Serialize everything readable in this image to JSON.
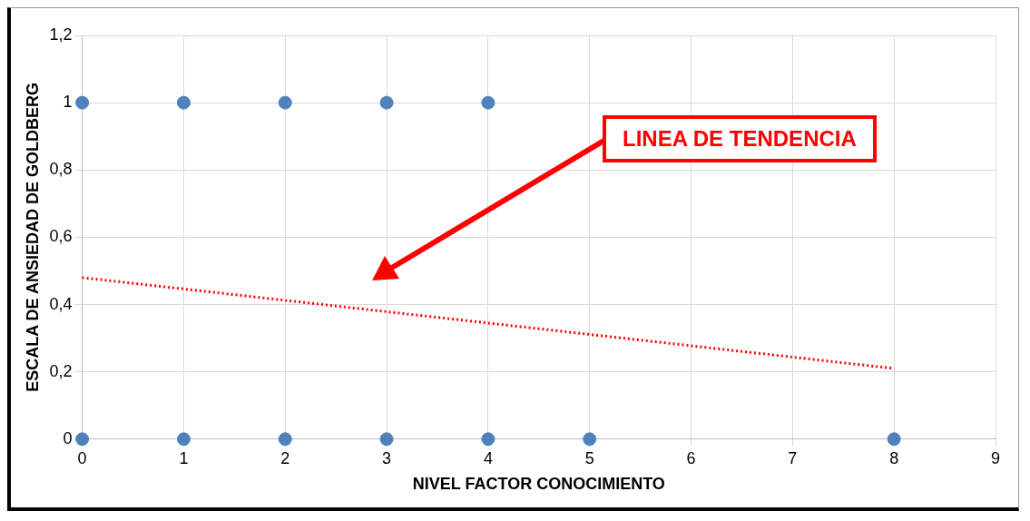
{
  "chart_data": {
    "type": "scatter",
    "xlabel": "NIVEL FACTOR CONOCIMIENTO",
    "ylabel": "ESCALA DE ANSIEDAD DE GOLDBERG",
    "xlim": [
      0,
      9
    ],
    "xticks": [
      0,
      1,
      2,
      3,
      4,
      5,
      6,
      7,
      8,
      9
    ],
    "ylim": [
      0,
      1.2
    ],
    "yticks": [
      {
        "value": 0,
        "label": "0"
      },
      {
        "value": 0.2,
        "label": "0,2"
      },
      {
        "value": 0.4,
        "label": "0,4"
      },
      {
        "value": 0.6,
        "label": "0,6"
      },
      {
        "value": 0.8,
        "label": "0,8"
      },
      {
        "value": 1,
        "label": "1"
      },
      {
        "value": 1.2,
        "label": "1,2"
      }
    ],
    "grid": true,
    "legend": false,
    "marker": "circle",
    "annotations": [
      "LINEA DE TENDENCIA"
    ],
    "series": [
      {
        "color": "#4f81bd",
        "x": [
          0,
          1,
          2,
          3,
          4,
          0,
          1,
          2,
          3,
          4,
          5,
          8
        ],
        "values": [
          1,
          1,
          1,
          1,
          1,
          0,
          0,
          0,
          0,
          0,
          0,
          0
        ]
      },
      {
        "type": "line",
        "color": "#ff0000",
        "x": [
          0,
          8
        ],
        "values": [
          0.48,
          0.21
        ],
        "line_style": "dotted",
        "marker": "none"
      }
    ]
  }
}
